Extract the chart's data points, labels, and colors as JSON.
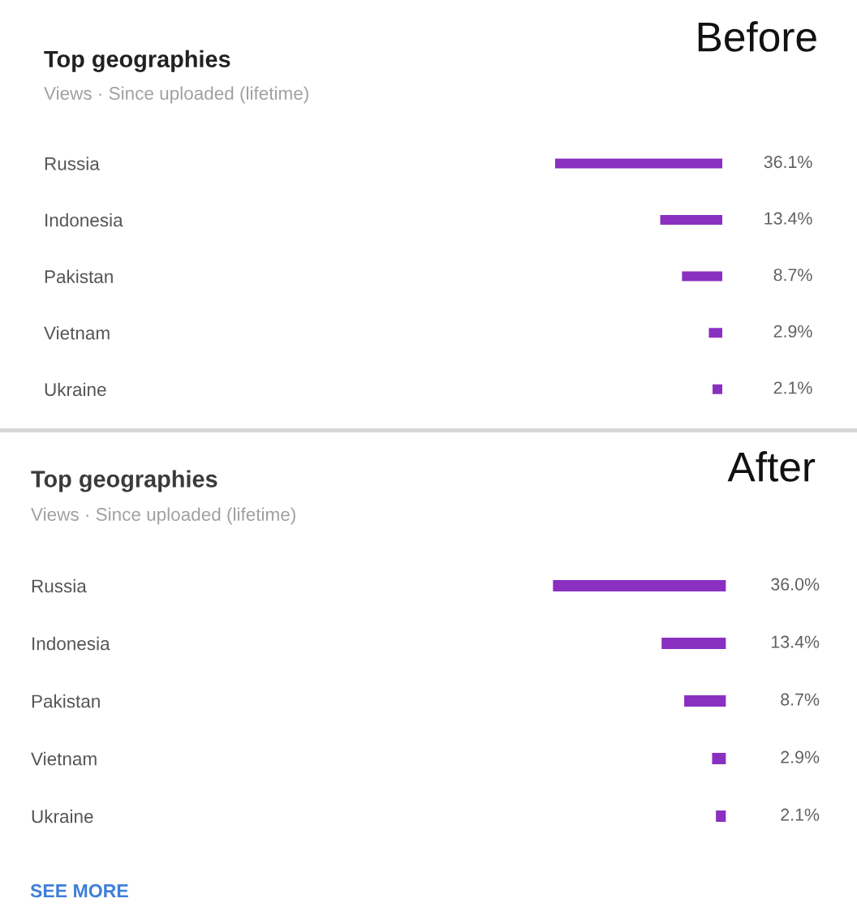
{
  "chart_data": [
    {
      "type": "bar",
      "orientation": "horizontal",
      "title": "Top geographies",
      "subtitle": "Views · Since uploaded (lifetime)",
      "annotations": [
        "Before"
      ],
      "categories": [
        "Russia",
        "Indonesia",
        "Pakistan",
        "Vietnam",
        "Ukraine"
      ],
      "values": [
        36.1,
        13.4,
        8.7,
        2.9,
        2.1
      ],
      "value_labels": [
        "36.1%",
        "13.4%",
        "8.7%",
        "2.9%",
        "2.1%"
      ],
      "color": "#8a30c0",
      "tick_labels": "y"
    },
    {
      "type": "bar",
      "orientation": "horizontal",
      "title": "Top geographies",
      "subtitle": "Views · Since uploaded (lifetime)",
      "annotations": [
        "After",
        "SEE MORE"
      ],
      "categories": [
        "Russia",
        "Indonesia",
        "Pakistan",
        "Vietnam",
        "Ukraine"
      ],
      "values": [
        36.0,
        13.4,
        8.7,
        2.9,
        2.1
      ],
      "value_labels": [
        "36.0%",
        "13.4%",
        "8.7%",
        "2.9%",
        "2.1%"
      ],
      "color": "#8a30c0",
      "tick_labels": "y"
    }
  ]
}
